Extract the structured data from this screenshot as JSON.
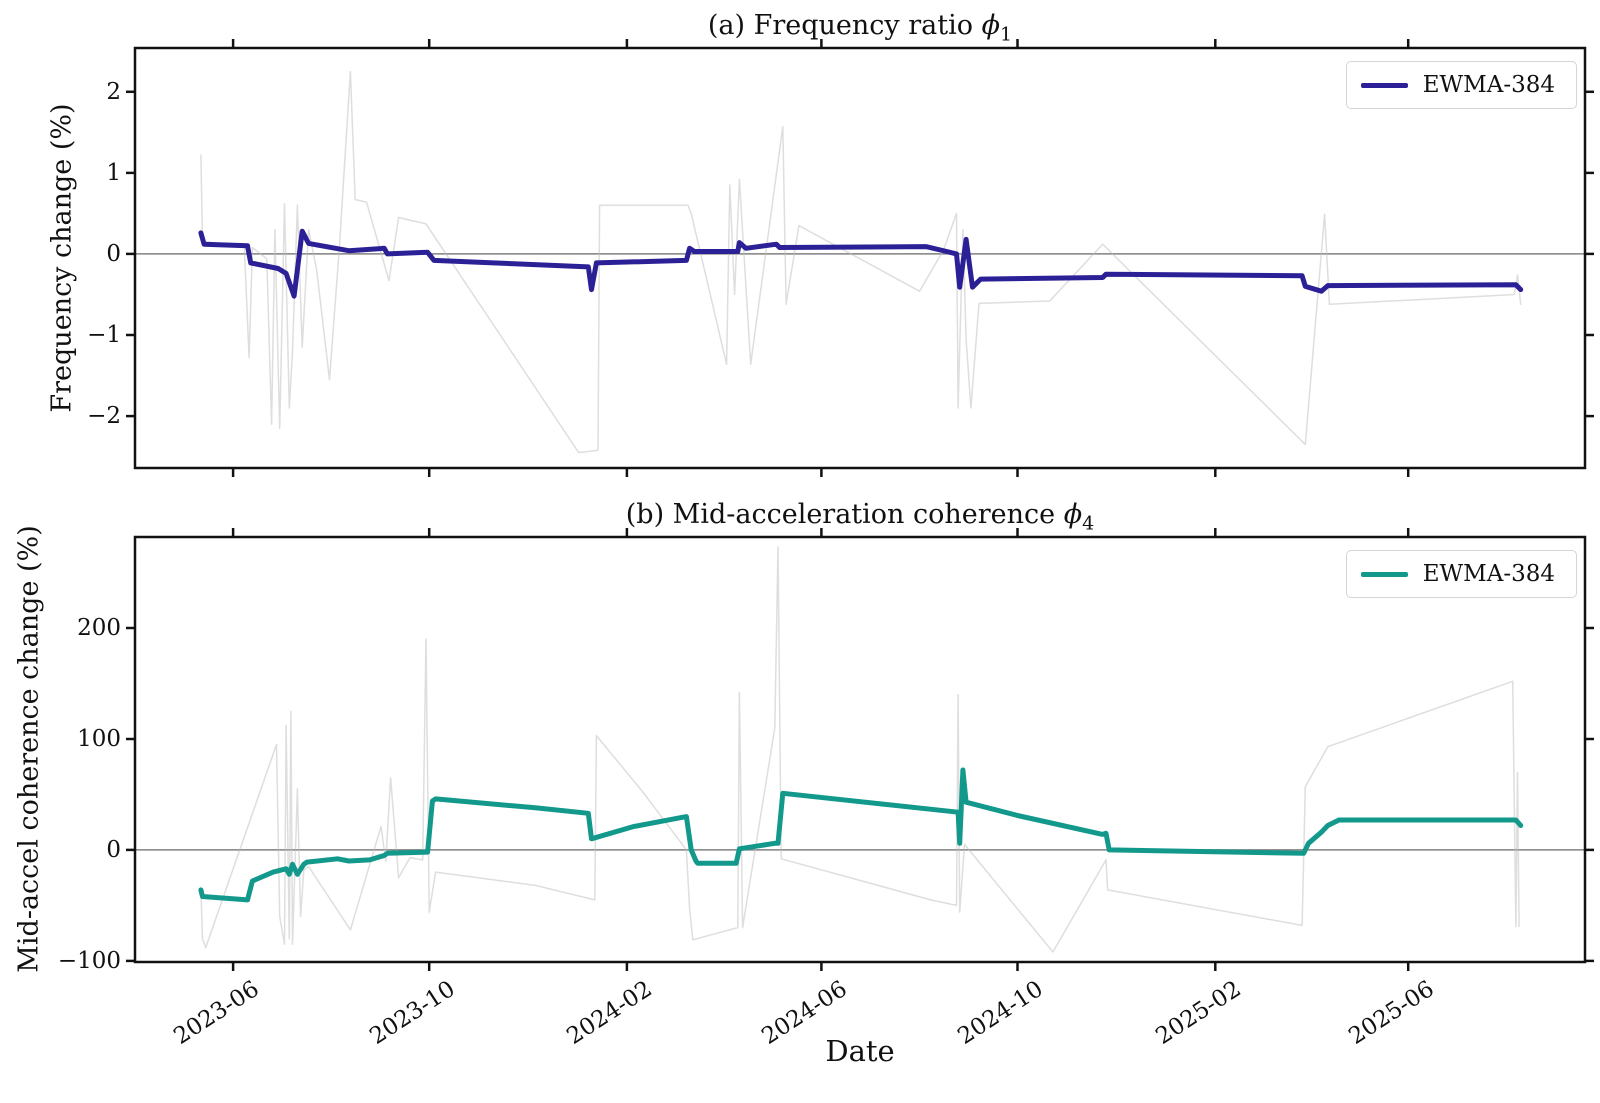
{
  "figure": {
    "xlabel": "Date",
    "background": "#ffffff"
  },
  "chart_data": [
    {
      "type": "line",
      "panel": "a",
      "title": "(a) Frequency ratio ϕ1",
      "title_parts": {
        "prefix": "(a) Frequency ratio ",
        "symbol": "ϕ",
        "subscript": "1"
      },
      "ylabel": "Frequency change (%)",
      "xlabel": "",
      "x_type": "date",
      "x_range": [
        "2023-04-01",
        "2025-09-19"
      ],
      "ylim": [
        -2.64,
        2.54
      ],
      "grid": false,
      "zero_line": true,
      "legend": {
        "position": "upper right",
        "entries": [
          "EWMA-384"
        ]
      },
      "colors": {
        "spine": "#111111",
        "zero_line": "#808080"
      },
      "xticks": [
        {
          "date": "2023-06-01",
          "label": "2023-06"
        },
        {
          "date": "2023-10-01",
          "label": "2023-10"
        },
        {
          "date": "2024-02-01",
          "label": "2024-02"
        },
        {
          "date": "2024-06-01",
          "label": "2024-06"
        },
        {
          "date": "2024-10-01",
          "label": "2024-10"
        },
        {
          "date": "2025-02-01",
          "label": "2025-02"
        },
        {
          "date": "2025-06-01",
          "label": "2025-06"
        }
      ],
      "yticks": [
        {
          "v": 2,
          "label": "2"
        },
        {
          "v": 1,
          "label": "1"
        },
        {
          "v": 0,
          "label": "0"
        },
        {
          "v": -1,
          "label": "−1"
        },
        {
          "v": -2,
          "label": "−2"
        }
      ],
      "series": [
        {
          "name": "raw",
          "color": "#bdbdbd",
          "opacity": 0.5,
          "width": 1.5,
          "points": [
            [
              "2023-05-12",
              1.22
            ],
            [
              "2023-05-13",
              0.15
            ],
            [
              "2023-06-08",
              0.1
            ],
            [
              "2023-06-11",
              -1.28
            ],
            [
              "2023-06-13",
              0.08
            ],
            [
              "2023-06-22",
              -0.06
            ],
            [
              "2023-06-25",
              -2.1
            ],
            [
              "2023-06-27",
              0.3
            ],
            [
              "2023-06-30",
              -2.15
            ],
            [
              "2023-07-03",
              0.62
            ],
            [
              "2023-07-06",
              -1.9
            ],
            [
              "2023-07-08",
              -1.2
            ],
            [
              "2023-07-11",
              0.6
            ],
            [
              "2023-07-14",
              -1.15
            ],
            [
              "2023-07-18",
              0.3
            ],
            [
              "2023-07-23",
              -0.2
            ],
            [
              "2023-07-31",
              -1.55
            ],
            [
              "2023-08-06",
              0.05
            ],
            [
              "2023-08-13",
              2.25
            ],
            [
              "2023-08-16",
              0.67
            ],
            [
              "2023-08-23",
              0.64
            ],
            [
              "2023-09-06",
              -0.33
            ],
            [
              "2023-09-12",
              0.45
            ],
            [
              "2023-09-29",
              0.37
            ],
            [
              "2024-01-02",
              -2.45
            ],
            [
              "2024-01-14",
              -2.42
            ],
            [
              "2024-01-15",
              0.6
            ],
            [
              "2024-03-10",
              0.6
            ],
            [
              "2024-03-12",
              0.5
            ],
            [
              "2024-04-03",
              -1.36
            ],
            [
              "2024-04-05",
              0.85
            ],
            [
              "2024-04-08",
              -0.5
            ],
            [
              "2024-04-11",
              0.92
            ],
            [
              "2024-04-18",
              -1.36
            ],
            [
              "2024-05-08",
              1.57
            ],
            [
              "2024-05-10",
              -0.62
            ],
            [
              "2024-05-18",
              0.35
            ],
            [
              "2024-08-01",
              -0.46
            ],
            [
              "2024-08-16",
              0.05
            ],
            [
              "2024-08-24",
              0.5
            ],
            [
              "2024-08-25",
              -1.9
            ],
            [
              "2024-08-28",
              0.3
            ],
            [
              "2024-08-30",
              -1.05
            ],
            [
              "2024-09-02",
              -1.9
            ],
            [
              "2024-09-07",
              -0.61
            ],
            [
              "2024-10-21",
              -0.58
            ],
            [
              "2024-11-23",
              0.12
            ],
            [
              "2025-03-29",
              -2.35
            ],
            [
              "2025-04-10",
              0.49
            ],
            [
              "2025-04-13",
              -0.62
            ],
            [
              "2025-06-21",
              -0.55
            ],
            [
              "2025-08-06",
              -0.5
            ],
            [
              "2025-08-08",
              -0.26
            ],
            [
              "2025-08-10",
              -0.62
            ]
          ]
        },
        {
          "name": "EWMA-384",
          "color": "#2b2096",
          "opacity": 1,
          "width": 5,
          "points": [
            [
              "2023-05-12",
              0.26
            ],
            [
              "2023-05-14",
              0.12
            ],
            [
              "2023-06-10",
              0.1
            ],
            [
              "2023-06-12",
              -0.11
            ],
            [
              "2023-06-29",
              -0.18
            ],
            [
              "2023-07-04",
              -0.24
            ],
            [
              "2023-07-09",
              -0.52
            ],
            [
              "2023-07-14",
              0.28
            ],
            [
              "2023-07-18",
              0.13
            ],
            [
              "2023-08-12",
              0.04
            ],
            [
              "2023-09-03",
              0.07
            ],
            [
              "2023-09-05",
              0.0
            ],
            [
              "2023-09-30",
              0.02
            ],
            [
              "2023-10-04",
              -0.08
            ],
            [
              "2023-11-10",
              -0.11
            ],
            [
              "2024-01-08",
              -0.16
            ],
            [
              "2024-01-10",
              -0.44
            ],
            [
              "2024-01-13",
              -0.11
            ],
            [
              "2024-03-09",
              -0.08
            ],
            [
              "2024-03-11",
              0.07
            ],
            [
              "2024-03-14",
              0.03
            ],
            [
              "2024-04-10",
              0.03
            ],
            [
              "2024-04-11",
              0.14
            ],
            [
              "2024-04-15",
              0.07
            ],
            [
              "2024-05-04",
              0.12
            ],
            [
              "2024-05-06",
              0.08
            ],
            [
              "2024-08-05",
              0.09
            ],
            [
              "2024-08-18",
              0.03
            ],
            [
              "2024-08-24",
              0.0
            ],
            [
              "2024-08-26",
              -0.41
            ],
            [
              "2024-08-30",
              0.18
            ],
            [
              "2024-09-03",
              -0.41
            ],
            [
              "2024-09-08",
              -0.31
            ],
            [
              "2024-11-23",
              -0.29
            ],
            [
              "2024-11-25",
              -0.25
            ],
            [
              "2025-03-27",
              -0.27
            ],
            [
              "2025-03-29",
              -0.4
            ],
            [
              "2025-04-08",
              -0.46
            ],
            [
              "2025-04-12",
              -0.39
            ],
            [
              "2025-08-07",
              -0.38
            ],
            [
              "2025-08-10",
              -0.44
            ]
          ]
        }
      ]
    },
    {
      "type": "line",
      "panel": "b",
      "title": "(b) Mid-acceleration coherence ϕ4",
      "title_parts": {
        "prefix": "(b) Mid-acceleration coherence ",
        "symbol": "ϕ",
        "subscript": "4"
      },
      "ylabel": "Mid-accel coherence change (%)",
      "xlabel": "Date",
      "x_type": "date",
      "x_range": [
        "2023-04-01",
        "2025-09-19"
      ],
      "ylim": [
        -101,
        282
      ],
      "grid": false,
      "zero_line": true,
      "legend": {
        "position": "upper right",
        "entries": [
          "EWMA-384"
        ]
      },
      "colors": {
        "spine": "#111111",
        "zero_line": "#808080"
      },
      "xticks": [
        {
          "date": "2023-06-01",
          "label": "2023-06"
        },
        {
          "date": "2023-10-01",
          "label": "2023-10"
        },
        {
          "date": "2024-02-01",
          "label": "2024-02"
        },
        {
          "date": "2024-06-01",
          "label": "2024-06"
        },
        {
          "date": "2024-10-01",
          "label": "2024-10"
        },
        {
          "date": "2025-02-01",
          "label": "2025-02"
        },
        {
          "date": "2025-06-01",
          "label": "2025-06"
        }
      ],
      "yticks": [
        {
          "v": 200,
          "label": "200"
        },
        {
          "v": 100,
          "label": "100"
        },
        {
          "v": 0,
          "label": "0"
        },
        {
          "v": -100,
          "label": "−100"
        }
      ],
      "series": [
        {
          "name": "raw",
          "color": "#bdbdbd",
          "opacity": 0.5,
          "width": 1.5,
          "points": [
            [
              "2023-05-12",
              -36
            ],
            [
              "2023-05-13",
              -80
            ],
            [
              "2023-05-15",
              -88
            ],
            [
              "2023-06-28",
              95
            ],
            [
              "2023-06-30",
              -60
            ],
            [
              "2023-07-03",
              -85
            ],
            [
              "2023-07-04",
              112
            ],
            [
              "2023-07-06",
              -80
            ],
            [
              "2023-07-07",
              125
            ],
            [
              "2023-07-08",
              -85
            ],
            [
              "2023-07-11",
              55
            ],
            [
              "2023-07-13",
              -60
            ],
            [
              "2023-07-15",
              -18
            ],
            [
              "2023-07-18",
              -15
            ],
            [
              "2023-08-13",
              -72
            ],
            [
              "2023-09-01",
              21
            ],
            [
              "2023-09-04",
              -10
            ],
            [
              "2023-09-07",
              65
            ],
            [
              "2023-09-12",
              -25
            ],
            [
              "2023-09-19",
              -7
            ],
            [
              "2023-09-27",
              -9
            ],
            [
              "2023-09-29",
              190
            ],
            [
              "2023-10-01",
              -56
            ],
            [
              "2023-10-05",
              -20
            ],
            [
              "2023-12-06",
              -32
            ],
            [
              "2024-01-12",
              -45
            ],
            [
              "2024-01-13",
              103
            ],
            [
              "2024-02-11",
              52
            ],
            [
              "2024-03-09",
              0
            ],
            [
              "2024-03-11",
              -53
            ],
            [
              "2024-03-13",
              -81
            ],
            [
              "2024-04-10",
              -70
            ],
            [
              "2024-04-11",
              142
            ],
            [
              "2024-04-13",
              -70
            ],
            [
              "2024-05-03",
              110
            ],
            [
              "2024-05-05",
              273
            ],
            [
              "2024-05-07",
              -8
            ],
            [
              "2024-08-08",
              -45
            ],
            [
              "2024-08-24",
              -50
            ],
            [
              "2024-08-25",
              140
            ],
            [
              "2024-08-26",
              -56
            ],
            [
              "2024-08-29",
              5
            ],
            [
              "2024-10-23",
              -92
            ],
            [
              "2024-11-25",
              -9
            ],
            [
              "2024-11-26",
              -36
            ],
            [
              "2025-03-27",
              -68
            ],
            [
              "2025-03-29",
              57
            ],
            [
              "2025-04-12",
              93
            ],
            [
              "2025-08-05",
              152
            ],
            [
              "2025-08-07",
              -69
            ],
            [
              "2025-08-08",
              70
            ],
            [
              "2025-08-09",
              -69
            ]
          ]
        },
        {
          "name": "EWMA-384",
          "color": "#12998c",
          "opacity": 1,
          "width": 5,
          "points": [
            [
              "2023-05-12",
              -36
            ],
            [
              "2023-05-13",
              -42
            ],
            [
              "2023-06-10",
              -45
            ],
            [
              "2023-06-13",
              -28
            ],
            [
              "2023-06-26",
              -20
            ],
            [
              "2023-07-04",
              -17
            ],
            [
              "2023-07-06",
              -22
            ],
            [
              "2023-07-08",
              -13
            ],
            [
              "2023-07-11",
              -22
            ],
            [
              "2023-07-15",
              -13
            ],
            [
              "2023-07-17",
              -11
            ],
            [
              "2023-08-05",
              -8
            ],
            [
              "2023-08-12",
              -10
            ],
            [
              "2023-08-25",
              -9
            ],
            [
              "2023-09-03",
              -5
            ],
            [
              "2023-09-05",
              -3
            ],
            [
              "2023-09-30",
              -2
            ],
            [
              "2023-10-03",
              44
            ],
            [
              "2023-10-05",
              46
            ],
            [
              "2023-12-06",
              38
            ],
            [
              "2024-01-08",
              33
            ],
            [
              "2024-01-10",
              10
            ],
            [
              "2024-02-05",
              21
            ],
            [
              "2024-03-09",
              30
            ],
            [
              "2024-03-12",
              0
            ],
            [
              "2024-03-15",
              -10
            ],
            [
              "2024-03-16",
              -12
            ],
            [
              "2024-04-09",
              -12
            ],
            [
              "2024-04-11",
              1
            ],
            [
              "2024-05-03",
              6
            ],
            [
              "2024-05-05",
              6
            ],
            [
              "2024-05-08",
              51
            ],
            [
              "2024-08-25",
              34
            ],
            [
              "2024-08-26",
              6
            ],
            [
              "2024-08-28",
              72
            ],
            [
              "2024-08-30",
              43
            ],
            [
              "2024-10-01",
              31
            ],
            [
              "2024-11-23",
              14
            ],
            [
              "2024-11-25",
              15
            ],
            [
              "2024-11-27",
              0
            ],
            [
              "2025-03-28",
              -3
            ],
            [
              "2025-03-31",
              6
            ],
            [
              "2025-04-08",
              16
            ],
            [
              "2025-04-12",
              22
            ],
            [
              "2025-04-19",
              27
            ],
            [
              "2025-08-07",
              27
            ],
            [
              "2025-08-10",
              22
            ]
          ]
        }
      ]
    }
  ]
}
